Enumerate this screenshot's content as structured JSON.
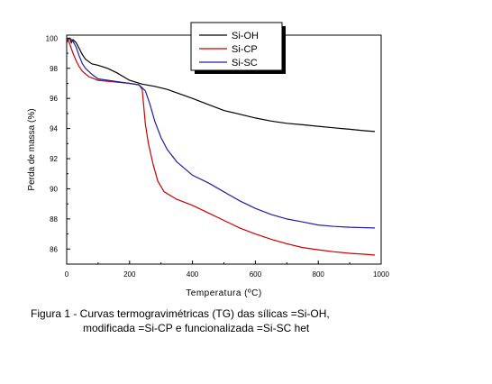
{
  "chart_data": {
    "type": "line",
    "xlabel": "Temperatura (ºC)",
    "ylabel": "Perda de massa (%)",
    "xlim": [
      0,
      1000
    ],
    "ylim": [
      85,
      100.2
    ],
    "x_ticks": [
      0,
      200,
      400,
      600,
      800,
      1000
    ],
    "y_ticks": [
      86,
      88,
      90,
      92,
      94,
      96,
      98,
      100
    ],
    "legend_position": "top-center, boxed with shadow",
    "grid": false,
    "series": [
      {
        "name": "Si-OH",
        "color": "#000000",
        "points": [
          [
            0,
            99.8
          ],
          [
            5,
            99.95
          ],
          [
            10,
            100.0
          ],
          [
            15,
            99.7
          ],
          [
            20,
            99.9
          ],
          [
            30,
            99.7
          ],
          [
            40,
            99.3
          ],
          [
            50,
            98.9
          ],
          [
            60,
            98.6
          ],
          [
            80,
            98.3
          ],
          [
            100,
            98.2
          ],
          [
            130,
            98.0
          ],
          [
            160,
            97.7
          ],
          [
            200,
            97.2
          ],
          [
            240,
            96.95
          ],
          [
            280,
            96.8
          ],
          [
            320,
            96.6
          ],
          [
            360,
            96.3
          ],
          [
            400,
            96.0
          ],
          [
            450,
            95.6
          ],
          [
            500,
            95.2
          ],
          [
            550,
            94.95
          ],
          [
            600,
            94.7
          ],
          [
            650,
            94.5
          ],
          [
            700,
            94.35
          ],
          [
            750,
            94.25
          ],
          [
            800,
            94.15
          ],
          [
            850,
            94.05
          ],
          [
            900,
            93.95
          ],
          [
            950,
            93.85
          ],
          [
            980,
            93.8
          ]
        ]
      },
      {
        "name": "Si-CP",
        "color": "#cc0000",
        "points": [
          [
            0,
            99.7
          ],
          [
            5,
            99.9
          ],
          [
            10,
            99.6
          ],
          [
            20,
            99.0
          ],
          [
            30,
            98.5
          ],
          [
            40,
            98.1
          ],
          [
            50,
            97.8
          ],
          [
            70,
            97.45
          ],
          [
            100,
            97.2
          ],
          [
            150,
            97.1
          ],
          [
            200,
            97.0
          ],
          [
            230,
            96.9
          ],
          [
            240,
            96.6
          ],
          [
            245,
            95.5
          ],
          [
            250,
            94.3
          ],
          [
            260,
            93.0
          ],
          [
            275,
            91.6
          ],
          [
            290,
            90.5
          ],
          [
            310,
            89.8
          ],
          [
            350,
            89.3
          ],
          [
            400,
            88.9
          ],
          [
            450,
            88.4
          ],
          [
            500,
            87.9
          ],
          [
            550,
            87.4
          ],
          [
            600,
            87.0
          ],
          [
            650,
            86.65
          ],
          [
            700,
            86.35
          ],
          [
            750,
            86.1
          ],
          [
            800,
            85.95
          ],
          [
            850,
            85.82
          ],
          [
            900,
            85.72
          ],
          [
            950,
            85.65
          ],
          [
            980,
            85.6
          ]
        ]
      },
      {
        "name": "Si-SC",
        "color": "#1f1fa8",
        "points": [
          [
            0,
            99.8
          ],
          [
            5,
            99.95
          ],
          [
            10,
            100.0
          ],
          [
            20,
            99.8
          ],
          [
            30,
            99.4
          ],
          [
            40,
            98.8
          ],
          [
            50,
            98.3
          ],
          [
            60,
            98.0
          ],
          [
            80,
            97.6
          ],
          [
            100,
            97.3
          ],
          [
            150,
            97.15
          ],
          [
            200,
            97.0
          ],
          [
            230,
            96.9
          ],
          [
            250,
            96.5
          ],
          [
            265,
            95.6
          ],
          [
            280,
            94.5
          ],
          [
            300,
            93.4
          ],
          [
            320,
            92.6
          ],
          [
            350,
            91.8
          ],
          [
            400,
            90.9
          ],
          [
            450,
            90.4
          ],
          [
            500,
            89.8
          ],
          [
            550,
            89.2
          ],
          [
            600,
            88.7
          ],
          [
            650,
            88.3
          ],
          [
            700,
            88.0
          ],
          [
            750,
            87.8
          ],
          [
            800,
            87.6
          ],
          [
            850,
            87.5
          ],
          [
            900,
            87.45
          ],
          [
            950,
            87.42
          ],
          [
            980,
            87.4
          ]
        ]
      }
    ]
  },
  "caption": {
    "line1": "Figura 1 - Curvas termogravimétricas (TG) das sílicas =Si-OH,",
    "line2": "modificada =Si-CP e funcionalizada =Si-SC het"
  }
}
